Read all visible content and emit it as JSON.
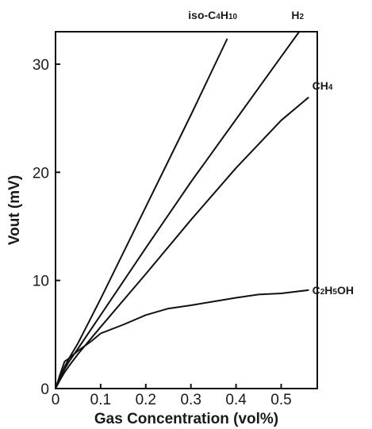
{
  "chart_data": {
    "type": "line",
    "title": "",
    "xlabel": "Gas Concentration (vol%)",
    "ylabel": "Vout (mV)",
    "xlim": [
      0,
      0.58
    ],
    "ylim": [
      0,
      33
    ],
    "x_ticks": [
      0,
      0.1,
      0.2,
      0.3,
      0.4,
      0.5
    ],
    "x_tick_labels": [
      "0",
      "0.1",
      "0.2",
      "0.3",
      "0.4",
      "0.5"
    ],
    "y_ticks": [
      0,
      10,
      20,
      30
    ],
    "y_tick_labels": [
      "0",
      "10",
      "20",
      "30"
    ],
    "grid": false,
    "series": [
      {
        "name": "iso-C4H10",
        "label_parts": [
          [
            "iso-C",
            false
          ],
          [
            "4",
            true
          ],
          [
            "H",
            false
          ],
          [
            "10",
            true
          ]
        ],
        "label_anchor": "top",
        "x": [
          0,
          0.01,
          0.02,
          0.03,
          0.05,
          0.1,
          0.2,
          0.3,
          0.38
        ],
        "y": [
          0,
          1.0,
          2.0,
          2.8,
          4.2,
          8.3,
          16.8,
          25.3,
          32.3
        ]
      },
      {
        "name": "H2",
        "label_parts": [
          [
            "H",
            false
          ],
          [
            "2",
            true
          ]
        ],
        "label_anchor": "top",
        "x": [
          0,
          0.01,
          0.02,
          0.03,
          0.05,
          0.1,
          0.2,
          0.3,
          0.4,
          0.5,
          0.54
        ],
        "y": [
          0,
          1.0,
          1.8,
          2.5,
          3.7,
          6.8,
          13.0,
          19.1,
          24.9,
          30.7,
          33.0
        ]
      },
      {
        "name": "CH4",
        "label_parts": [
          [
            "CH",
            false
          ],
          [
            "4",
            true
          ]
        ],
        "label_anchor": "right",
        "x": [
          0,
          0.01,
          0.02,
          0.03,
          0.05,
          0.1,
          0.2,
          0.3,
          0.4,
          0.5,
          0.56
        ],
        "y": [
          0,
          0.8,
          1.5,
          2.1,
          3.2,
          5.7,
          10.6,
          15.6,
          20.4,
          24.8,
          26.9
        ]
      },
      {
        "name": "C2H5OH",
        "label_parts": [
          [
            "C",
            false
          ],
          [
            "2",
            true
          ],
          [
            "H",
            false
          ],
          [
            "5",
            true
          ],
          [
            "OH",
            false
          ]
        ],
        "label_anchor": "right",
        "x": [
          0,
          0.01,
          0.02,
          0.03,
          0.05,
          0.08,
          0.1,
          0.15,
          0.2,
          0.25,
          0.3,
          0.4,
          0.45,
          0.5,
          0.56
        ],
        "y": [
          0,
          1.3,
          2.5,
          2.8,
          3.5,
          4.4,
          5.1,
          5.9,
          6.8,
          7.4,
          7.7,
          8.4,
          8.7,
          8.8,
          9.1
        ]
      }
    ]
  }
}
